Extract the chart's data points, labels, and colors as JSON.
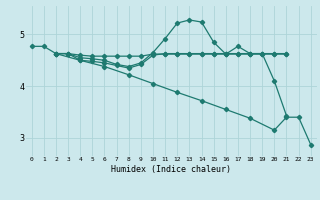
{
  "background_color": "#cce8ec",
  "grid_color": "#aed4d8",
  "line_color": "#1e7a70",
  "xlabel": "Humidex (Indice chaleur)",
  "xlim": [
    -0.5,
    23.5
  ],
  "ylim": [
    2.65,
    5.55
  ],
  "yticks": [
    3,
    4,
    5
  ],
  "xticks": [
    0,
    1,
    2,
    3,
    4,
    5,
    6,
    7,
    8,
    9,
    10,
    11,
    12,
    13,
    14,
    15,
    16,
    17,
    18,
    19,
    20,
    21,
    22,
    23
  ],
  "line1_x": [
    0,
    1,
    2,
    3,
    4,
    5,
    6,
    7,
    8,
    9,
    10,
    11,
    12,
    13,
    14,
    15,
    16,
    17,
    18,
    19,
    20,
    21
  ],
  "line1_y": [
    4.77,
    4.77,
    4.63,
    4.63,
    4.6,
    4.58,
    4.58,
    4.58,
    4.58,
    4.58,
    4.62,
    4.62,
    4.62,
    4.62,
    4.62,
    4.62,
    4.62,
    4.62,
    4.62,
    4.62,
    4.62,
    4.62
  ],
  "line2_x": [
    2,
    3,
    4,
    5,
    6,
    7,
    8,
    9,
    10,
    11,
    12,
    13,
    14,
    15,
    16,
    17,
    18,
    19,
    20,
    21
  ],
  "line2_y": [
    4.63,
    4.63,
    4.55,
    4.53,
    4.5,
    4.42,
    4.38,
    4.45,
    4.65,
    4.92,
    5.22,
    5.28,
    5.24,
    4.85,
    4.62,
    4.77,
    4.63,
    4.63,
    4.63,
    4.63
  ],
  "line3_x": [
    2,
    3,
    4,
    5,
    6,
    7,
    8,
    9,
    10,
    11,
    12,
    13,
    14,
    15,
    16,
    17,
    18,
    19,
    20,
    21
  ],
  "line3_y": [
    4.63,
    4.63,
    4.5,
    4.48,
    4.45,
    4.4,
    4.35,
    4.42,
    4.6,
    4.63,
    4.63,
    4.63,
    4.63,
    4.63,
    4.63,
    4.63,
    4.63,
    4.63,
    4.1,
    3.43
  ],
  "line4_x": [
    2,
    4,
    6,
    8,
    10,
    12,
    14,
    16,
    18,
    20,
    21,
    22,
    23
  ],
  "line4_y": [
    4.63,
    4.5,
    4.38,
    4.22,
    4.05,
    3.88,
    3.72,
    3.55,
    3.38,
    3.15,
    3.4,
    3.4,
    2.87
  ]
}
